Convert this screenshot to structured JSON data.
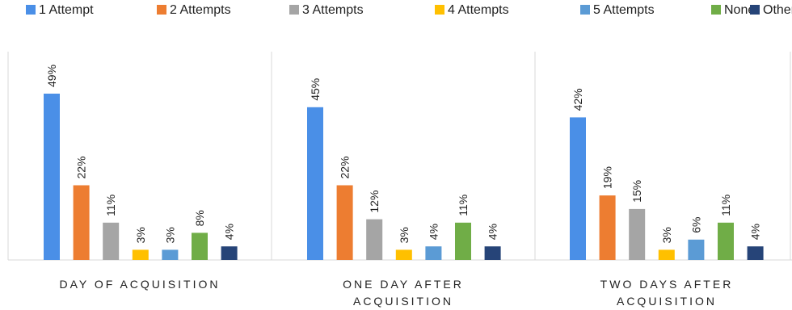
{
  "chart_data": {
    "type": "bar",
    "categories": [
      [
        "DAY OF ACQUISITION"
      ],
      [
        "ONE DAY AFTER",
        "ACQUISITION"
      ],
      [
        "TWO DAYS AFTER",
        "ACQUISITION"
      ]
    ],
    "series": [
      {
        "name": "1 Attempt",
        "color": "#4a8fe7",
        "values": [
          49,
          45,
          42
        ]
      },
      {
        "name": "2 Attempts",
        "color": "#ed7d31",
        "values": [
          22,
          22,
          19
        ]
      },
      {
        "name": "3 Attempts",
        "color": "#a5a5a5",
        "values": [
          11,
          12,
          15
        ]
      },
      {
        "name": "4 Attempts",
        "color": "#ffc000",
        "values": [
          3,
          3,
          3
        ]
      },
      {
        "name": "5 Attempts",
        "color": "#5b9bd5",
        "values": [
          3,
          4,
          6
        ]
      },
      {
        "name": "None",
        "color": "#70ad47",
        "values": [
          8,
          11,
          11
        ]
      },
      {
        "name": "Other",
        "color": "#264478",
        "values": [
          4,
          4,
          4
        ]
      }
    ],
    "value_suffix": "%",
    "ylim": [
      0,
      49
    ],
    "legend_position": "top",
    "grid": false
  }
}
